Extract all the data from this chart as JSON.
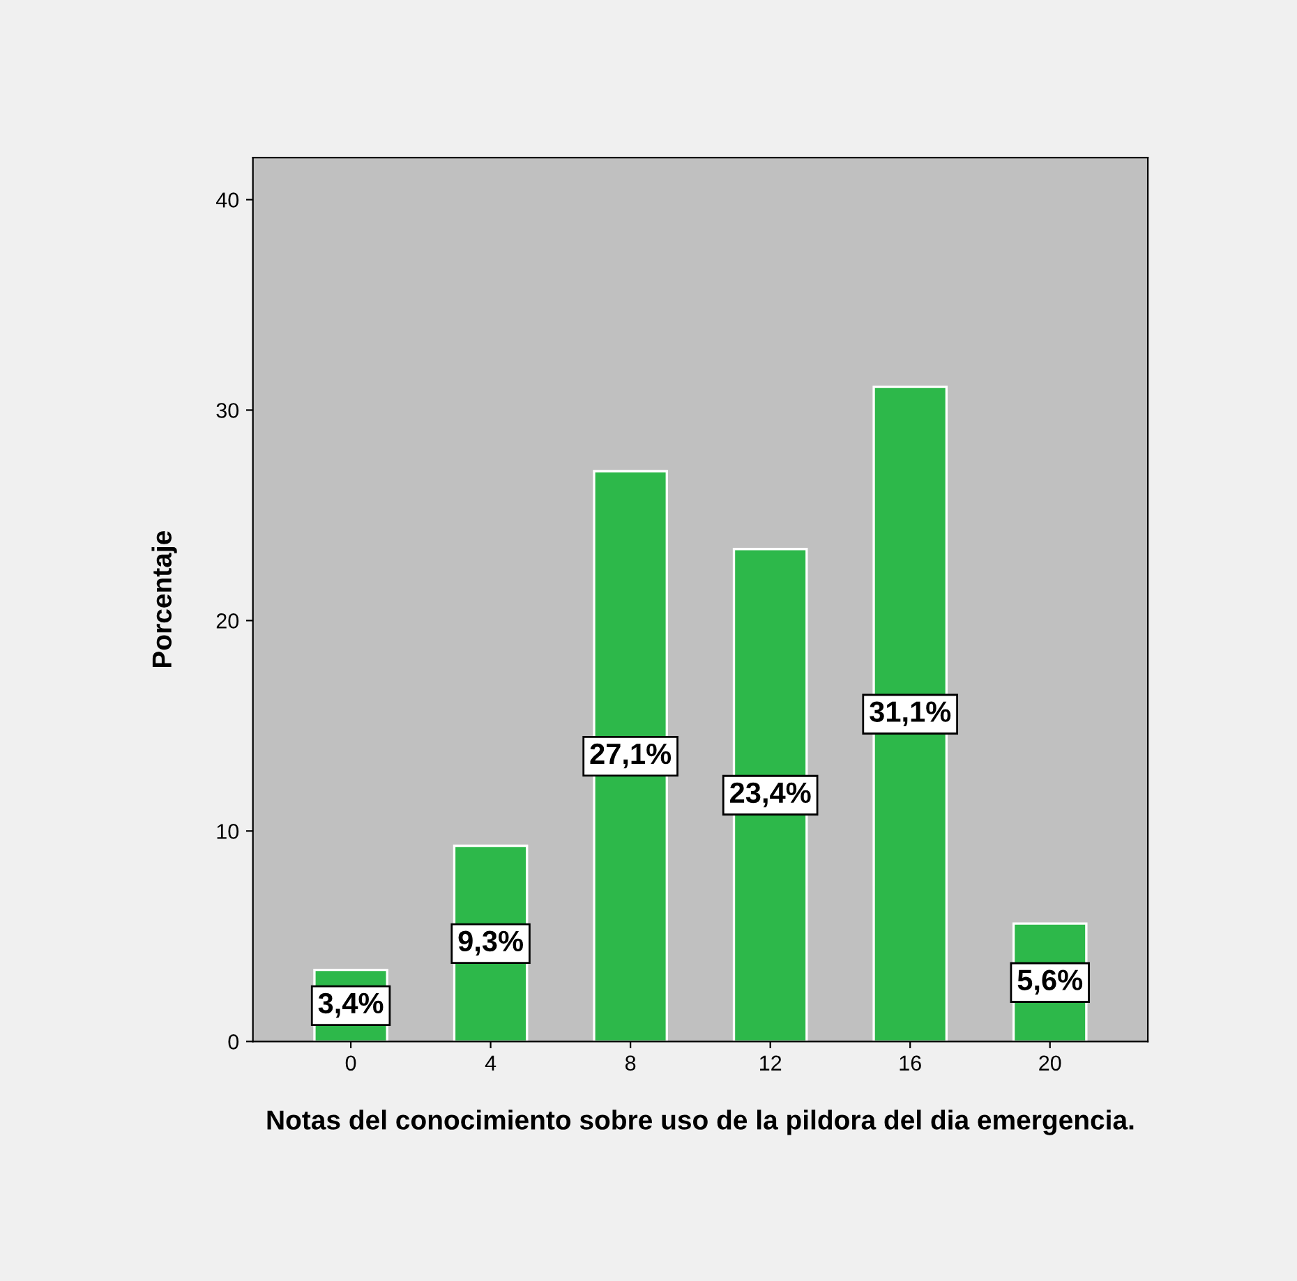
{
  "chart_data": {
    "type": "bar",
    "xlabel": "Notas del conocimiento sobre uso de la pildora del dia emergencia.",
    "ylabel": "Porcentaje",
    "categories": [
      "0",
      "4",
      "8",
      "12",
      "16",
      "20"
    ],
    "values": [
      3.4,
      9.3,
      27.1,
      23.4,
      31.1,
      5.6
    ],
    "value_labels": [
      "3,4%",
      "9,3%",
      "27,1%",
      "23,4%",
      "31,1%",
      "5,6%"
    ],
    "color": "#2db84a",
    "ylim": [
      0,
      42
    ],
    "yticks": [
      0,
      10,
      20,
      30,
      40
    ],
    "grid": false
  }
}
